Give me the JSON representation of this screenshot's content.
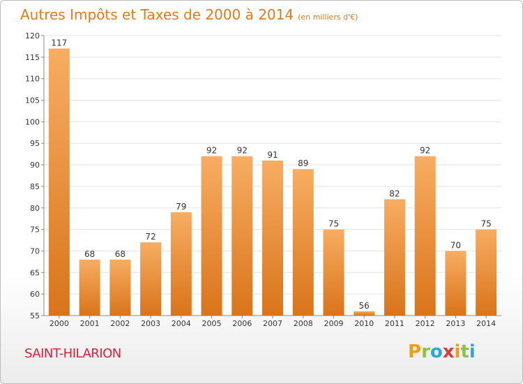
{
  "chart_data": {
    "type": "bar",
    "title": "Autres Impôts et Taxes de 2000 à 2014",
    "subtitle": "(en milliers d'€)",
    "categories": [
      "2000",
      "2001",
      "2002",
      "2003",
      "2004",
      "2005",
      "2006",
      "2007",
      "2008",
      "2009",
      "2010",
      "2011",
      "2012",
      "2013",
      "2014"
    ],
    "values": [
      117,
      68,
      68,
      72,
      79,
      92,
      92,
      91,
      89,
      75,
      56,
      82,
      92,
      70,
      75
    ],
    "data_labels": [
      "117",
      "68",
      "68",
      "72",
      "79",
      "92",
      "92",
      "91",
      "89",
      "75",
      "56",
      "82",
      "92",
      "70",
      "75"
    ],
    "ylim": [
      55,
      120
    ],
    "yticks": [
      55,
      60,
      65,
      70,
      75,
      80,
      85,
      90,
      95,
      100,
      105,
      110,
      115,
      120
    ],
    "ytick_labels": [
      "55",
      "60",
      "65",
      "70",
      "75",
      "80",
      "85",
      "90",
      "95",
      "100",
      "105",
      "110",
      "115",
      "120"
    ],
    "grid": true,
    "legend": "none",
    "bar_color": "#f0913a",
    "bar_color_dark": "#d9741a",
    "bar_color_light": "#f7ad62",
    "title_color": "#e07b20"
  },
  "footer": {
    "commune": "SAINT-HILARION",
    "commune_color": "#d8203e"
  },
  "logo": {
    "text": "Proxiti",
    "letters": [
      {
        "char": "P",
        "color": "#f39c12"
      },
      {
        "char": "r",
        "color": "#8bc34a"
      },
      {
        "char": "o",
        "color": "#29a8e0"
      },
      {
        "char": "x",
        "color": "#e53935"
      },
      {
        "char": "i",
        "color": "#f39c12"
      },
      {
        "char": "t",
        "color": "#8bc34a"
      },
      {
        "char": "i",
        "color": "#29a8e0"
      }
    ]
  }
}
